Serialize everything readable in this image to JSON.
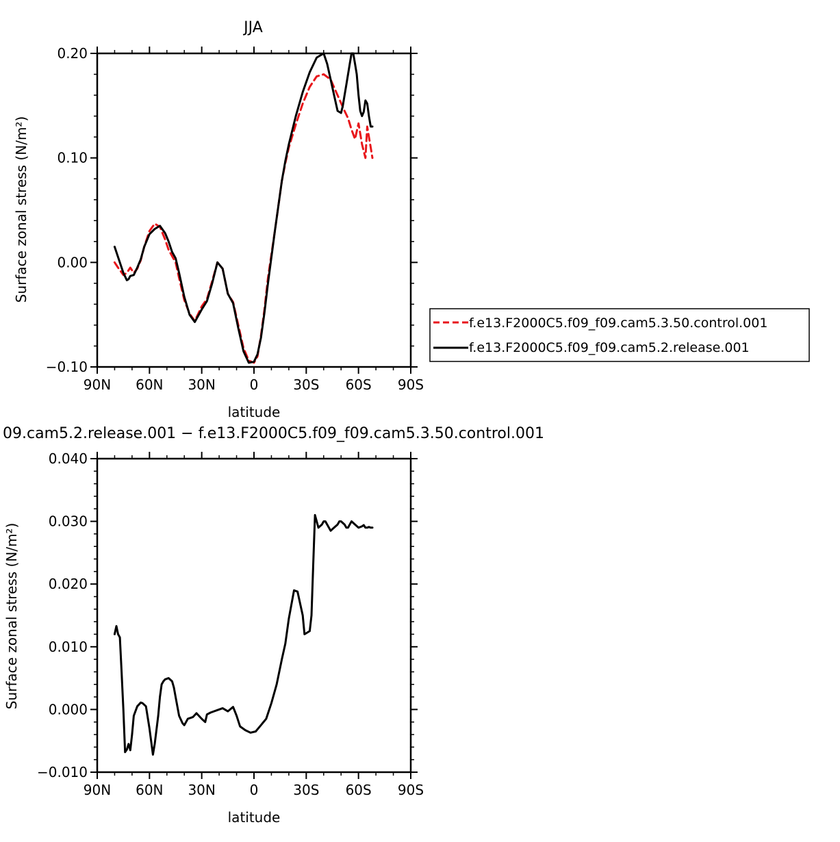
{
  "chart_data": [
    {
      "type": "line",
      "title": "JJA",
      "xlabel": "latitude",
      "ylabel": "Surface zonal stress (N/m²)",
      "x_axis_direction": "90N (left) to 90S (right); x value = degrees from 90N",
      "xlim": [
        0,
        180
      ],
      "ylim": [
        -0.1,
        0.2
      ],
      "xticks": [
        0,
        30,
        60,
        90,
        120,
        150,
        180
      ],
      "xtick_labels": [
        "90N",
        "60N",
        "30N",
        "0",
        "30S",
        "60S",
        "90S"
      ],
      "yticks": [
        -0.1,
        0.0,
        0.1,
        0.2
      ],
      "ytick_labels": [
        "−0.10",
        "0.00",
        "0.10",
        "0.20"
      ],
      "grid": false,
      "legend_position": "right, outside plot",
      "series": [
        {
          "name": "f.e13.F2000C5.f09_f09.cam5.3.50.control.001",
          "color": "#e8161b",
          "dash": "dashed",
          "x": [
            10,
            12,
            15,
            17,
            19,
            21,
            23,
            25,
            27,
            30,
            33,
            36,
            39,
            41,
            43,
            45,
            47,
            50,
            53,
            56,
            60,
            63,
            66,
            69,
            72,
            75,
            78,
            81,
            84,
            87,
            90,
            92,
            94,
            96,
            98,
            102,
            106,
            108,
            110,
            114,
            118,
            122,
            126,
            130,
            134,
            138,
            142,
            144,
            146,
            148,
            150,
            152,
            154,
            155,
            156,
            157,
            158
          ],
          "y": [
            0.0,
            -0.005,
            -0.012,
            -0.01,
            -0.005,
            -0.01,
            -0.006,
            0.002,
            0.015,
            0.03,
            0.037,
            0.034,
            0.022,
            0.012,
            0.006,
            0.0,
            -0.015,
            -0.036,
            -0.049,
            -0.056,
            -0.042,
            -0.035,
            -0.018,
            0.0,
            -0.006,
            -0.03,
            -0.038,
            -0.06,
            -0.082,
            -0.094,
            -0.096,
            -0.09,
            -0.07,
            -0.045,
            -0.015,
            0.03,
            0.078,
            0.095,
            0.11,
            0.132,
            0.152,
            0.168,
            0.178,
            0.18,
            0.175,
            0.16,
            0.145,
            0.138,
            0.127,
            0.118,
            0.133,
            0.113,
            0.1,
            0.13,
            0.12,
            0.11,
            0.1
          ]
        },
        {
          "name": "f.e13.F2000C5.f09_f09.cam5.2.release.001",
          "color": "#000000",
          "dash": "solid",
          "x": [
            10,
            12,
            15,
            17,
            18,
            19,
            21,
            23,
            25,
            27,
            30,
            33,
            36,
            39,
            41,
            43,
            45,
            47,
            50,
            53,
            56,
            60,
            63,
            66,
            69,
            72,
            75,
            78,
            81,
            84,
            87,
            90,
            92,
            94,
            96,
            98,
            102,
            106,
            108,
            110,
            114,
            118,
            122,
            126,
            130,
            132,
            134,
            136,
            138,
            140,
            141,
            142,
            143,
            144,
            145,
            146,
            147,
            148,
            149,
            150,
            151,
            152,
            153,
            154,
            155,
            156,
            157,
            158
          ],
          "y": [
            0.015,
            0.005,
            -0.01,
            -0.017,
            -0.016,
            -0.013,
            -0.012,
            -0.005,
            0.003,
            0.015,
            0.027,
            0.032,
            0.035,
            0.028,
            0.02,
            0.01,
            0.004,
            -0.01,
            -0.033,
            -0.05,
            -0.057,
            -0.045,
            -0.037,
            -0.02,
            0.0,
            -0.006,
            -0.03,
            -0.039,
            -0.063,
            -0.085,
            -0.096,
            -0.095,
            -0.088,
            -0.072,
            -0.048,
            -0.02,
            0.03,
            0.078,
            0.097,
            0.113,
            0.14,
            0.163,
            0.182,
            0.196,
            0.2,
            0.19,
            0.175,
            0.16,
            0.145,
            0.143,
            0.15,
            0.16,
            0.17,
            0.18,
            0.19,
            0.2,
            0.2,
            0.19,
            0.18,
            0.16,
            0.145,
            0.14,
            0.144,
            0.155,
            0.152,
            0.14,
            0.13,
            0.13
          ]
        }
      ]
    },
    {
      "type": "line",
      "title": "09.cam5.2.release.001 − f.e13.F2000C5.f09_f09.cam5.3.50.control.001",
      "xlabel": "latitude",
      "ylabel": "Surface zonal stress (N/m²)",
      "x_axis_direction": "90N (left) to 90S (right); x value = degrees from 90N",
      "xlim": [
        0,
        180
      ],
      "ylim": [
        -0.01,
        0.04
      ],
      "xticks": [
        0,
        30,
        60,
        90,
        120,
        150,
        180
      ],
      "xtick_labels": [
        "90N",
        "60N",
        "30N",
        "0",
        "30S",
        "60S",
        "90S"
      ],
      "yticks": [
        -0.01,
        0.0,
        0.01,
        0.02,
        0.03,
        0.04
      ],
      "ytick_labels": [
        "−0.010",
        "0.000",
        "0.010",
        "0.020",
        "0.030",
        "0.040"
      ],
      "grid": false,
      "series": [
        {
          "color": "#000000",
          "dash": "solid",
          "x": [
            10,
            11,
            12,
            13,
            14,
            15,
            16,
            17,
            18,
            19,
            20,
            21,
            23,
            25,
            26,
            28,
            30,
            32,
            33,
            35,
            36,
            37,
            38,
            39,
            41,
            43,
            44,
            45,
            47,
            49,
            50,
            52,
            55,
            57,
            60,
            62,
            63,
            65,
            67,
            69,
            72,
            75,
            78,
            80,
            82,
            85,
            88,
            91,
            94,
            97,
            100,
            103,
            106,
            108,
            110,
            113,
            115,
            118,
            119,
            122,
            123,
            124,
            125,
            127,
            129,
            130,
            131,
            134,
            136,
            138,
            139,
            140,
            142,
            143,
            144,
            145,
            146,
            148,
            150,
            152,
            153,
            154,
            155,
            156,
            157,
            158
          ],
          "y": [
            0.012,
            0.0133,
            0.012,
            0.0115,
            0.006,
            0.0,
            -0.0068,
            -0.0064,
            -0.0055,
            -0.0065,
            -0.004,
            -0.001,
            0.0005,
            0.0011,
            0.001,
            0.0005,
            -0.003,
            -0.0072,
            -0.0055,
            -0.001,
            0.002,
            0.004,
            0.0045,
            0.0048,
            0.005,
            0.0045,
            0.0035,
            0.002,
            -0.001,
            -0.0022,
            -0.0025,
            -0.0015,
            -0.0012,
            -0.0006,
            -0.0015,
            -0.002,
            -0.0008,
            -0.0005,
            -0.0003,
            -0.0001,
            0.0002,
            -0.0003,
            0.0004,
            -0.001,
            -0.0027,
            -0.0033,
            -0.0037,
            -0.0035,
            -0.0025,
            -0.0015,
            0.001,
            0.004,
            0.008,
            0.0105,
            0.0145,
            0.019,
            0.0188,
            0.015,
            0.012,
            0.0125,
            0.015,
            0.023,
            0.031,
            0.029,
            0.0295,
            0.03,
            0.03,
            0.0285,
            0.029,
            0.0295,
            0.03,
            0.03,
            0.0295,
            0.029,
            0.029,
            0.0295,
            0.03,
            0.0295,
            0.029,
            0.0292,
            0.0294,
            0.029,
            0.029,
            0.0291,
            0.029,
            0.029
          ]
        }
      ]
    }
  ]
}
